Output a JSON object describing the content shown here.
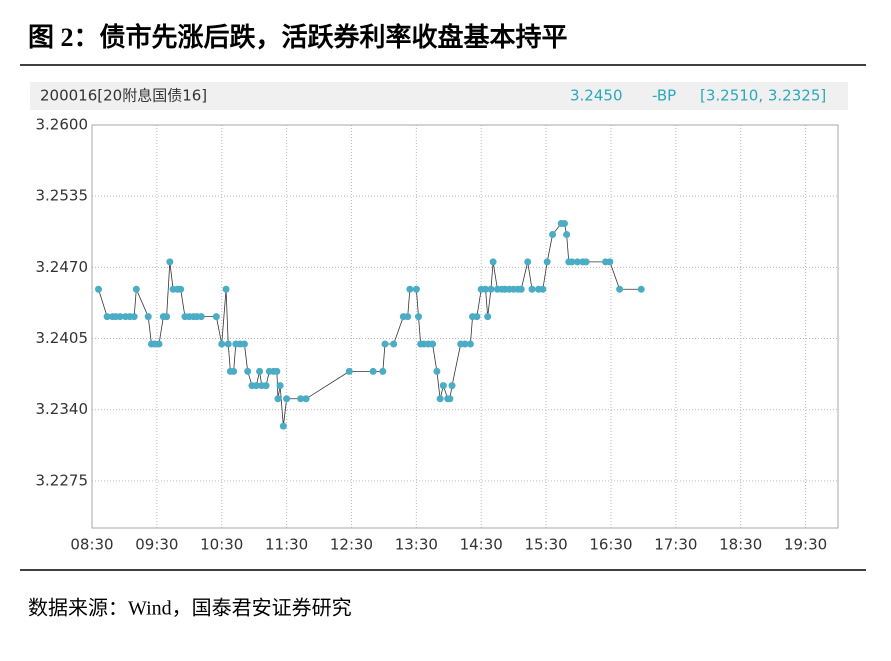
{
  "chart_data": {
    "type": "line",
    "title": "图 2：债市先涨后跌，活跃券利率收盘基本持平",
    "header_label": "200016[20附息国债16]",
    "header_stats": [
      "3.2450",
      "-BP",
      "[3.2510, 3.2325]"
    ],
    "color": "#4bacc6",
    "line_color": "#333333",
    "grid": true,
    "x": [
      516,
      524,
      529,
      532,
      536,
      541,
      545,
      549,
      551,
      562,
      565,
      568,
      572,
      576,
      579,
      582,
      585,
      589,
      592,
      596,
      600,
      604,
      607,
      611,
      625,
      630,
      634,
      636,
      638,
      641,
      643,
      647,
      651,
      654,
      658,
      662,
      665,
      667,
      671,
      674,
      678,
      681,
      682,
      684,
      687,
      690,
      703,
      708,
      748,
      770,
      779,
      781,
      789,
      798,
      802,
      804,
      810,
      812,
      814,
      817,
      821,
      825,
      829,
      832,
      835,
      839,
      841,
      843,
      851,
      855,
      860,
      862,
      866,
      870,
      874,
      876,
      879,
      881,
      885,
      889,
      892,
      896,
      900,
      904,
      907,
      913,
      917,
      923,
      927,
      931,
      936,
      944,
      947,
      949,
      951,
      954,
      959,
      964,
      967,
      985,
      989,
      998,
      1018
    ],
    "values": [
      3.245,
      3.2425,
      3.2425,
      3.2425,
      3.2425,
      3.2425,
      3.2425,
      3.2425,
      3.245,
      3.2425,
      3.24,
      3.24,
      3.24,
      3.2425,
      3.2425,
      3.2475,
      3.245,
      3.245,
      3.245,
      3.2425,
      3.2425,
      3.2425,
      3.2425,
      3.2425,
      3.2425,
      3.24,
      3.245,
      3.24,
      3.2375,
      3.2375,
      3.24,
      3.24,
      3.24,
      3.2375,
      3.2362,
      3.2362,
      3.2375,
      3.2362,
      3.2362,
      3.2375,
      3.2375,
      3.2375,
      3.235,
      3.2362,
      3.2325,
      3.235,
      3.235,
      3.235,
      3.2375,
      3.2375,
      3.2375,
      3.24,
      3.24,
      3.2425,
      3.2425,
      3.245,
      3.245,
      3.2425,
      3.24,
      3.24,
      3.24,
      3.24,
      3.2375,
      3.235,
      3.2362,
      3.235,
      3.235,
      3.2362,
      3.24,
      3.24,
      3.24,
      3.2425,
      3.2425,
      3.245,
      3.245,
      3.2425,
      3.245,
      3.2475,
      3.245,
      3.245,
      3.245,
      3.245,
      3.245,
      3.245,
      3.245,
      3.2475,
      3.245,
      3.245,
      3.245,
      3.2475,
      3.25,
      3.251,
      3.251,
      3.25,
      3.2475,
      3.2475,
      3.2475,
      3.2475,
      3.2475,
      3.2475,
      3.2475,
      3.245,
      3.245
    ],
    "xlim": [
      510,
      1200
    ],
    "xticks": [
      {
        "value": 510,
        "label": "08:30"
      },
      {
        "value": 570,
        "label": "09:30"
      },
      {
        "value": 630,
        "label": "10:30"
      },
      {
        "value": 690,
        "label": "11:30"
      },
      {
        "value": 750,
        "label": "12:30"
      },
      {
        "value": 810,
        "label": "13:30"
      },
      {
        "value": 870,
        "label": "14:30"
      },
      {
        "value": 930,
        "label": "15:30"
      },
      {
        "value": 990,
        "label": "16:30"
      },
      {
        "value": 1050,
        "label": "17:30"
      },
      {
        "value": 1110,
        "label": "18:30"
      },
      {
        "value": 1170,
        "label": "19:30"
      }
    ],
    "ylim": [
      3.2232,
      3.26
    ],
    "yticks": [
      {
        "value": 3.2275,
        "label": "3.2275"
      },
      {
        "value": 3.234,
        "label": "3.2340"
      },
      {
        "value": 3.2405,
        "label": "3.2405"
      },
      {
        "value": 3.247,
        "label": "3.2470"
      },
      {
        "value": 3.2535,
        "label": "3.2535"
      },
      {
        "value": 3.26,
        "label": "3.2600"
      }
    ]
  },
  "source": "数据来源：Wind，国泰君安证券研究"
}
